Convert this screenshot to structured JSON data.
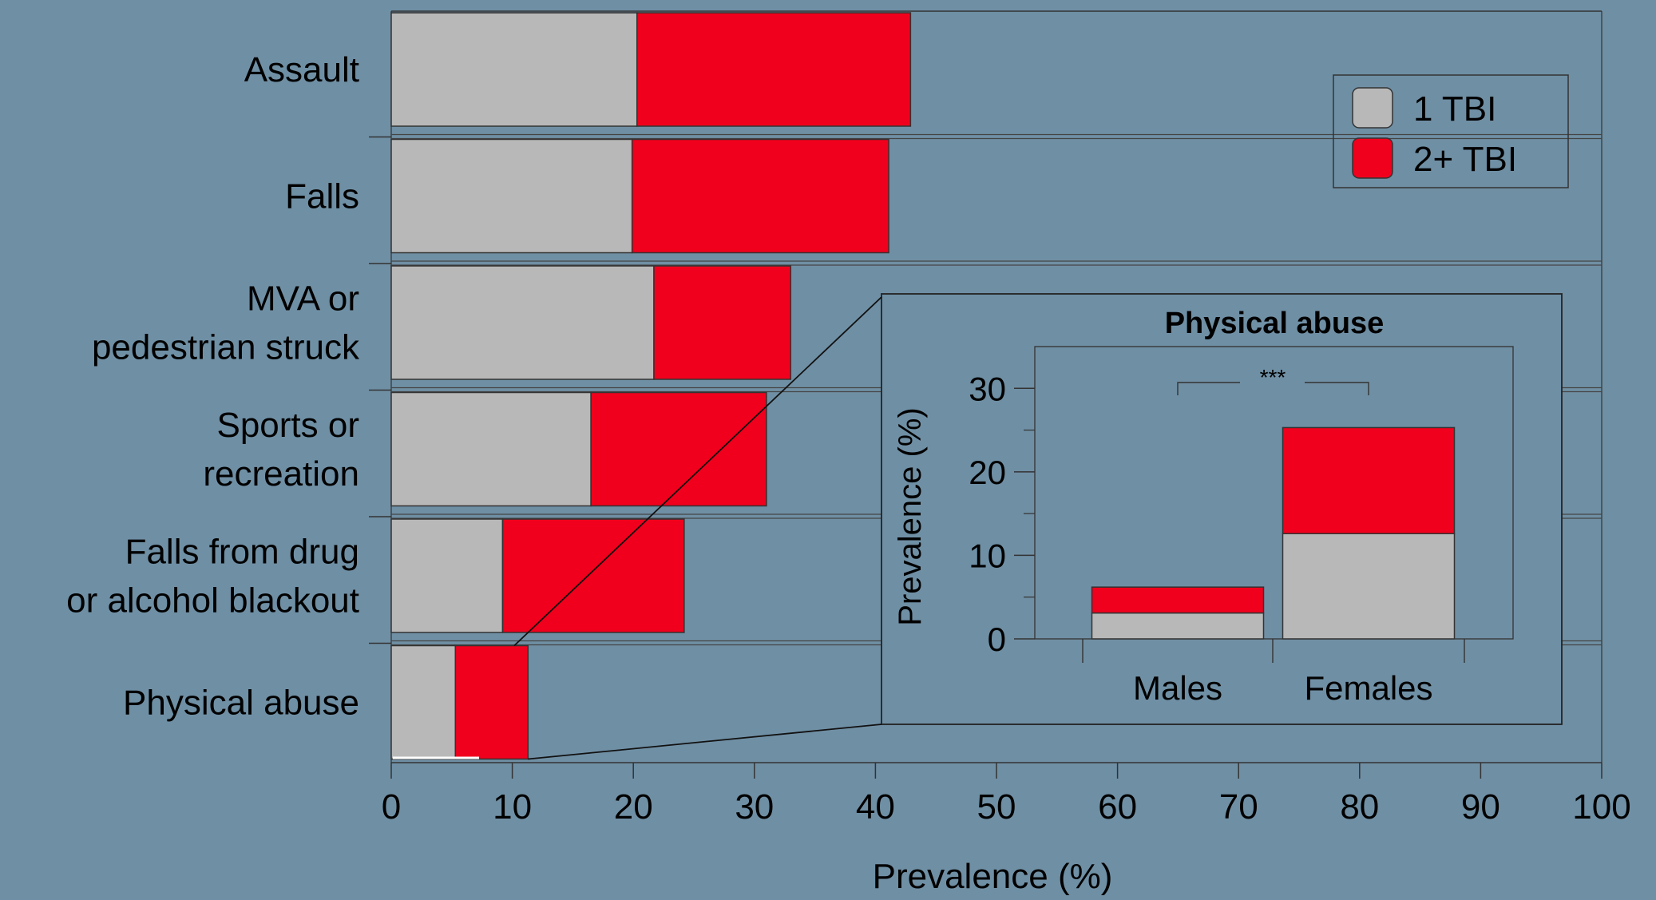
{
  "chart_data": [
    {
      "type": "bar",
      "orientation": "horizontal",
      "stacked": true,
      "categories": [
        [
          "Assault"
        ],
        [
          "Falls"
        ],
        [
          "MVA or",
          "pedestrian struck"
        ],
        [
          "Sports or",
          "recreation"
        ],
        [
          "Falls from drug",
          "or alcohol blackout"
        ],
        [
          "Physical abuse"
        ]
      ],
      "series": [
        {
          "name": "1 TBI",
          "color": "#b8b8b8",
          "values": [
            20.3,
            19.9,
            21.7,
            16.5,
            9.2,
            5.3
          ]
        },
        {
          "name": "2+ TBI",
          "color": "#f0001c",
          "values": [
            22.6,
            21.2,
            11.3,
            14.5,
            15.0,
            6.0
          ]
        }
      ],
      "xlabel": "Prevalence (%)",
      "xlim": [
        0,
        100
      ],
      "xticks": [
        0,
        10,
        20,
        30,
        40,
        50,
        60,
        70,
        80,
        90,
        100
      ],
      "legend_position": "top-right",
      "grid": false
    },
    {
      "type": "bar",
      "stacked": true,
      "title": "Physical abuse",
      "categories": [
        "Males",
        "Females"
      ],
      "series": [
        {
          "name": "1 TBI",
          "color": "#b8b8b8",
          "values": [
            3.1,
            12.6
          ]
        },
        {
          "name": "2+ TBI",
          "color": "#f0001c",
          "values": [
            3.1,
            12.7
          ]
        }
      ],
      "ylabel": "Prevalence (%)",
      "ylim": [
        0,
        35
      ],
      "yticks": [
        0,
        10,
        20,
        30
      ],
      "annotation": "***",
      "position": "inset-right"
    }
  ]
}
